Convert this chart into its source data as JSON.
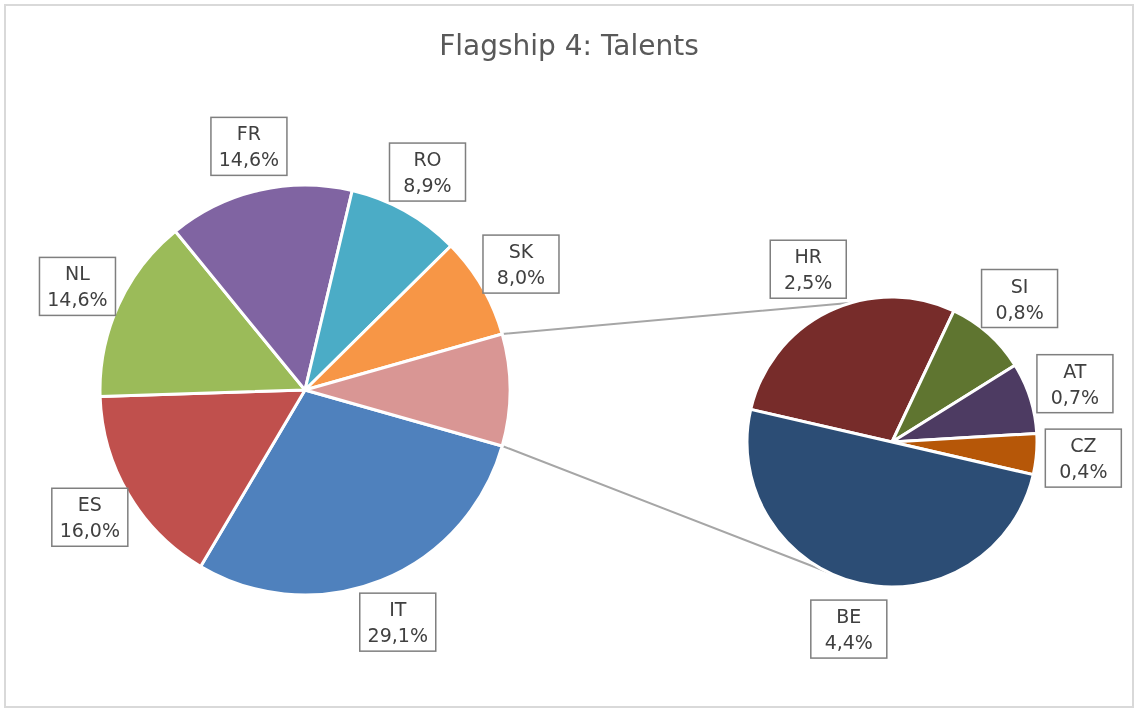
{
  "chart_data": [
    {
      "type": "pie",
      "title": "Flagship 4: Talents",
      "categories": [
        "IT",
        "ES",
        "NL",
        "FR",
        "RO",
        "SK",
        null
      ],
      "values": [
        29.1,
        16.0,
        14.6,
        14.6,
        8.9,
        8.0,
        8.8
      ],
      "colors": [
        "#4f81bd",
        "#c0504d",
        "#9bbb59",
        "#8064a2",
        "#4bacc6",
        "#f79646",
        "#d99694"
      ],
      "value_labels": [
        "29,1%",
        "16,0%",
        "14,6%",
        "14,6%",
        "8,9%",
        "8,0%",
        null
      ]
    },
    {
      "type": "pie",
      "categories": [
        "HR",
        "SI",
        "AT",
        "CZ",
        "BE"
      ],
      "values": [
        2.5,
        0.8,
        0.7,
        0.4,
        4.4
      ],
      "colors": [
        "#772c2a",
        "#5f7530",
        "#4d3b62",
        "#b65708",
        "#2c4d75"
      ],
      "value_labels": [
        "2,5%",
        "0,8%",
        "0,7%",
        "0,4%",
        "4,4%"
      ]
    }
  ]
}
